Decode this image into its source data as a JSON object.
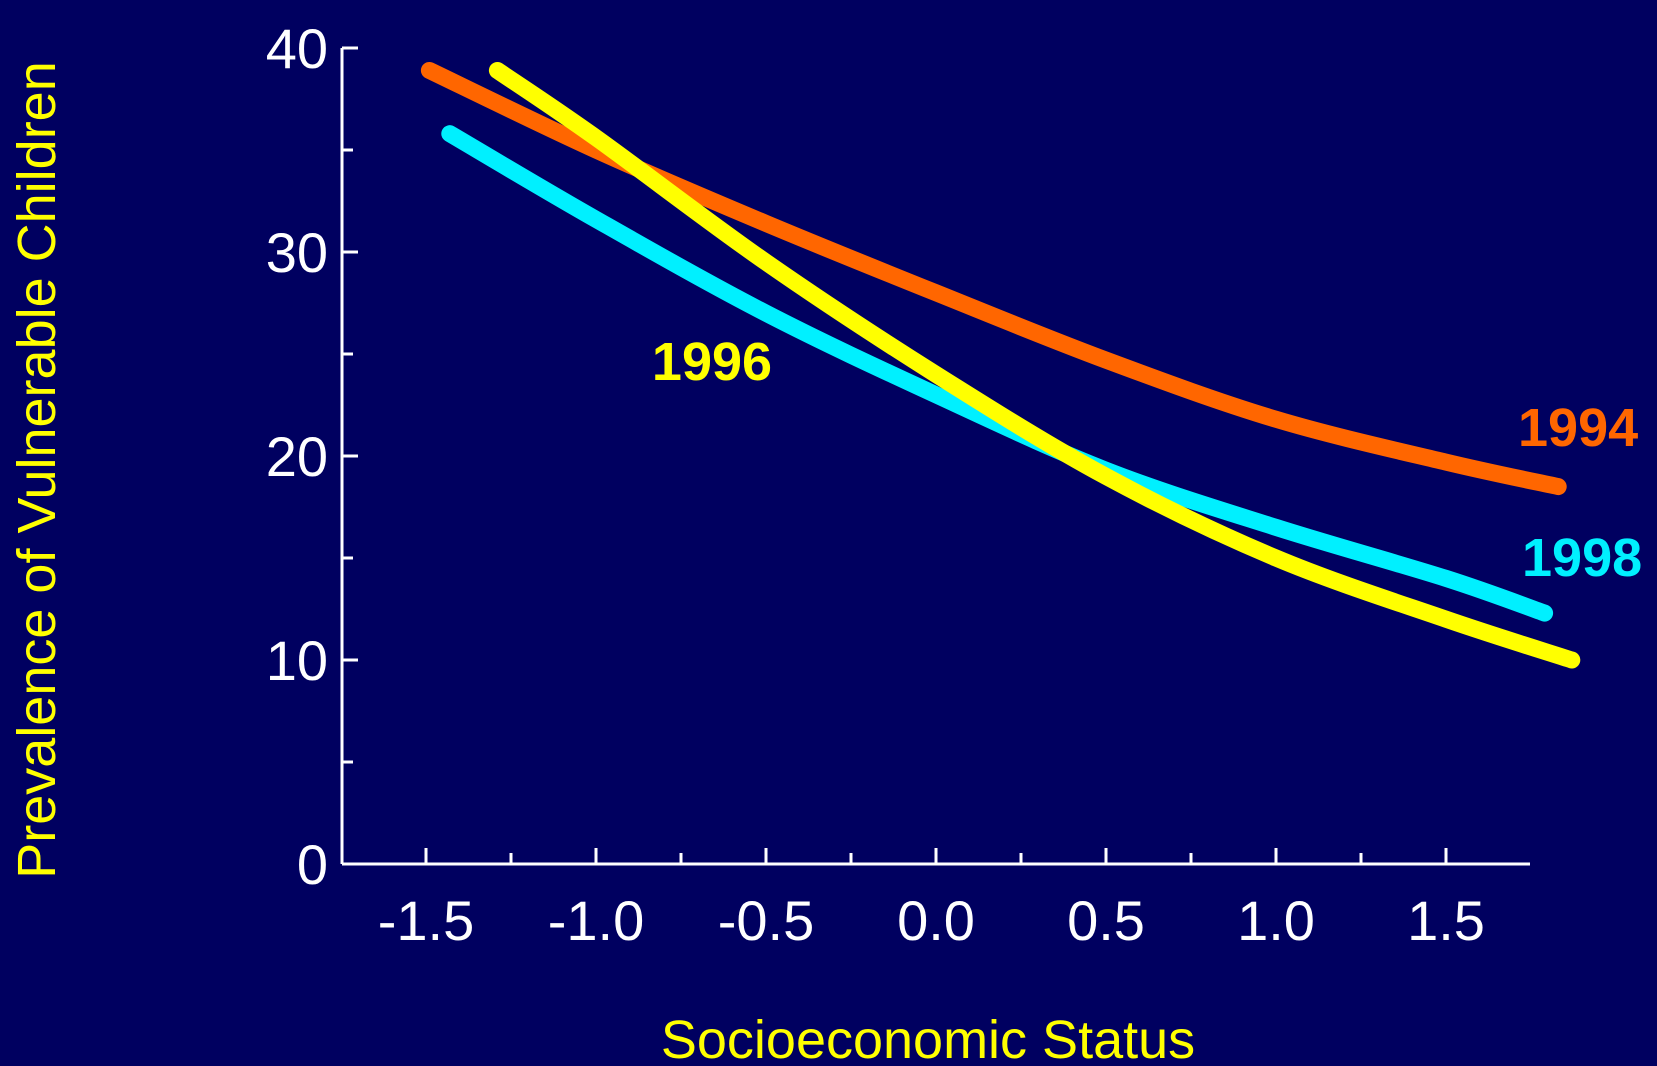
{
  "chart_data": {
    "type": "line",
    "xlabel": "Socioeconomic Status",
    "ylabel": "Prevalence of Vulnerable Children",
    "xlim": [
      -1.75,
      1.75
    ],
    "ylim": [
      0,
      40
    ],
    "x_ticks": [
      "-1.5",
      "-1.0",
      "-0.5",
      "0.0",
      "0.5",
      "1.0",
      "1.5"
    ],
    "y_ticks": [
      "0",
      "10",
      "20",
      "30",
      "40"
    ],
    "grid": false,
    "background": "#000060",
    "series": [
      {
        "name": "1994",
        "color": "#ff6600",
        "points": [
          [
            -1.49,
            38.9
          ],
          [
            -1.0,
            35.0
          ],
          [
            -0.5,
            31.4
          ],
          [
            0.0,
            28.0
          ],
          [
            0.5,
            24.7
          ],
          [
            1.0,
            21.8
          ],
          [
            1.5,
            19.7
          ],
          [
            1.83,
            18.5
          ]
        ]
      },
      {
        "name": "1996",
        "color": "#ffff00",
        "points": [
          [
            -1.29,
            38.9
          ],
          [
            -1.0,
            35.6
          ],
          [
            -0.5,
            29.5
          ],
          [
            0.0,
            24.0
          ],
          [
            0.5,
            19.0
          ],
          [
            1.0,
            15.0
          ],
          [
            1.5,
            12.0
          ],
          [
            1.87,
            10.0
          ]
        ]
      },
      {
        "name": "1998",
        "color": "#00f0ff",
        "points": [
          [
            -1.43,
            35.8
          ],
          [
            -1.0,
            31.6
          ],
          [
            -0.5,
            27.0
          ],
          [
            0.0,
            23.0
          ],
          [
            0.5,
            19.3
          ],
          [
            1.0,
            16.5
          ],
          [
            1.5,
            14.0
          ],
          [
            1.79,
            12.3
          ]
        ]
      }
    ]
  }
}
